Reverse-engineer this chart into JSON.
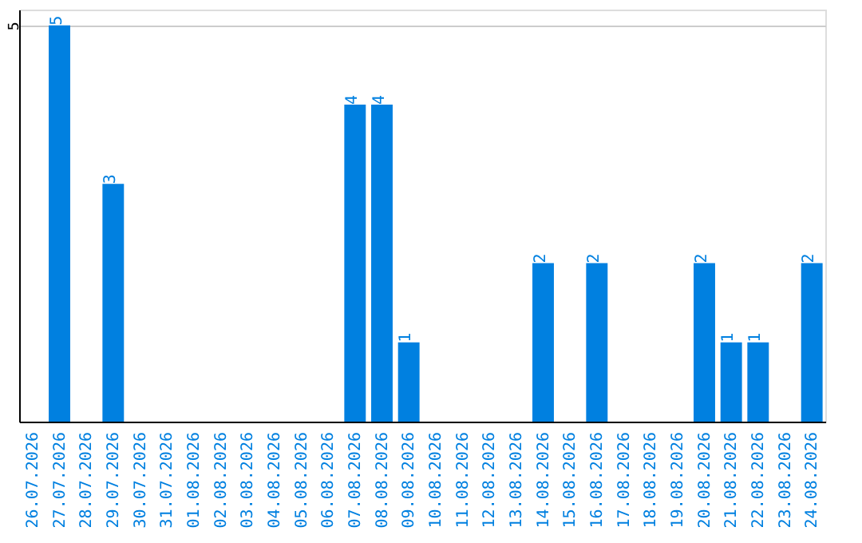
{
  "chart_data": {
    "type": "bar",
    "categories": [
      "26.07.2026",
      "27.07.2026",
      "28.07.2026",
      "29.07.2026",
      "30.07.2026",
      "31.07.2026",
      "01.08.2026",
      "02.08.2026",
      "03.08.2026",
      "04.08.2026",
      "05.08.2026",
      "06.08.2026",
      "07.08.2026",
      "08.08.2026",
      "09.08.2026",
      "10.08.2026",
      "11.08.2026",
      "12.08.2026",
      "13.08.2026",
      "14.08.2026",
      "15.08.2026",
      "16.08.2026",
      "17.08.2026",
      "18.08.2026",
      "19.08.2026",
      "20.08.2026",
      "21.08.2026",
      "22.08.2026",
      "23.08.2026",
      "24.08.2026"
    ],
    "values": [
      0,
      5,
      0,
      3,
      0,
      0,
      0,
      0,
      0,
      0,
      0,
      0,
      4,
      4,
      1,
      0,
      0,
      0,
      0,
      2,
      0,
      2,
      0,
      0,
      0,
      2,
      1,
      1,
      0,
      2
    ],
    "value_labels": [
      null,
      "5",
      null,
      "3",
      null,
      null,
      null,
      null,
      null,
      null,
      null,
      null,
      "4",
      "4",
      "1",
      null,
      null,
      null,
      null,
      "2",
      null,
      "2",
      null,
      null,
      null,
      "2",
      "1",
      "1",
      null,
      "2"
    ],
    "color": "#0080e0",
    "ylim": [
      0,
      5.2
    ],
    "yticks": [
      {
        "value": 0,
        "label": null
      },
      {
        "value": 5,
        "label": "5"
      }
    ],
    "grid": "y"
  }
}
